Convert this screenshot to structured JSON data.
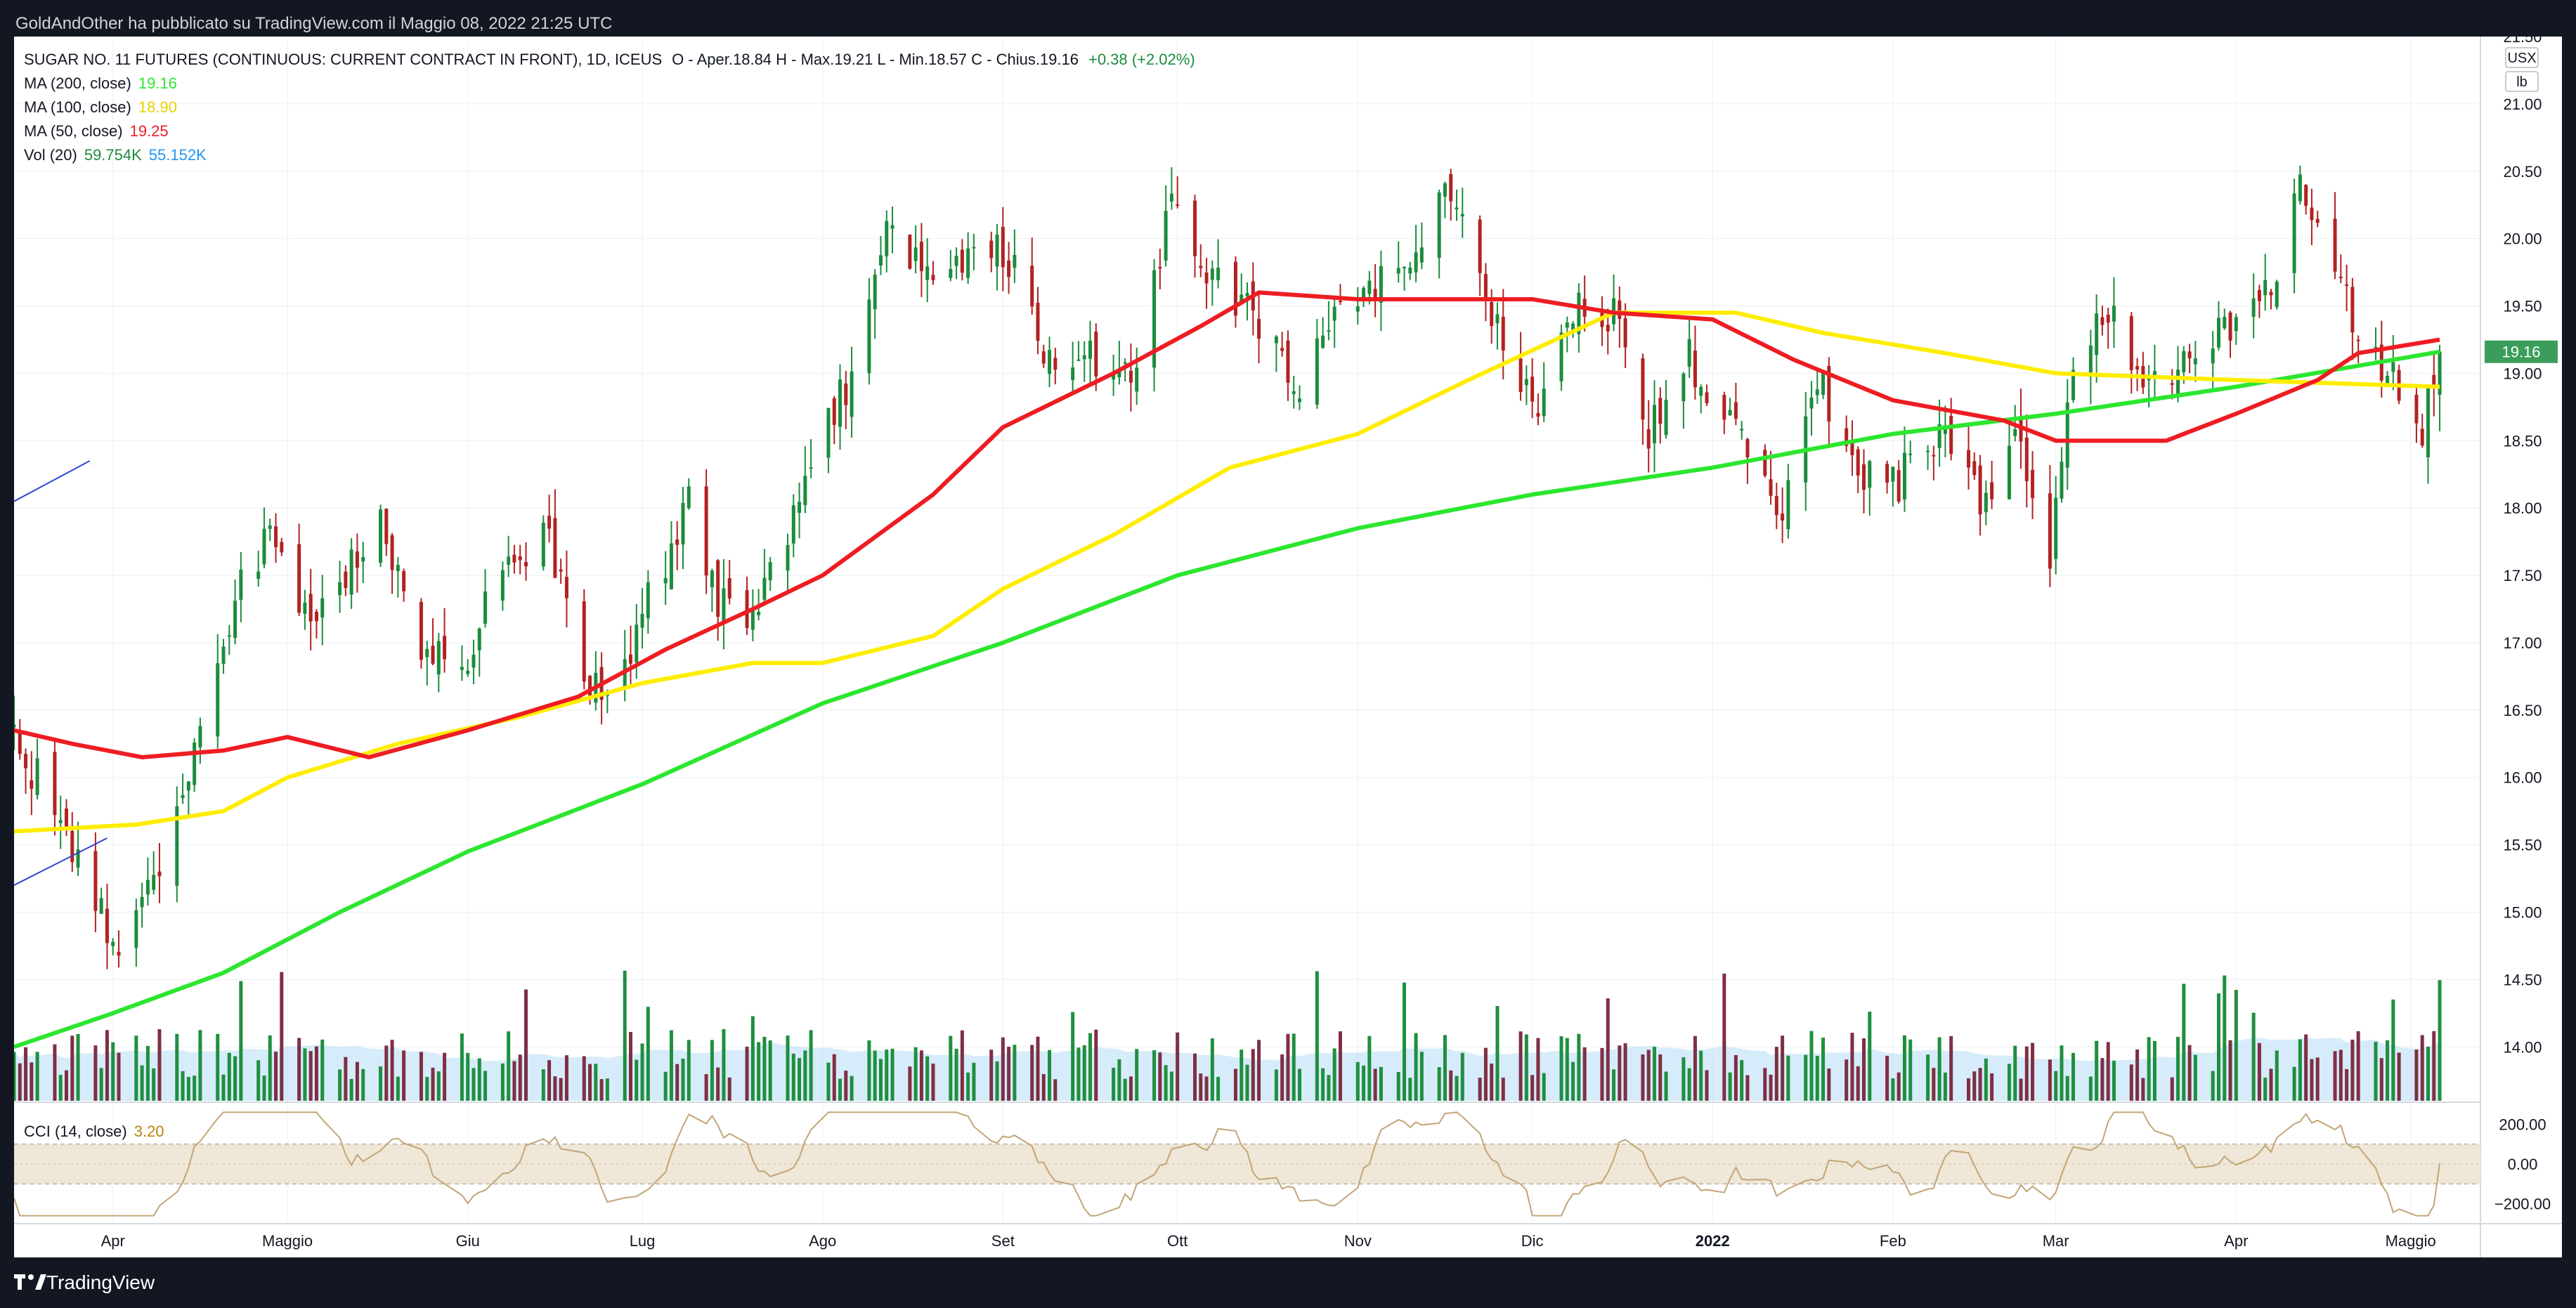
{
  "header": {
    "publisher_line": "GoldAndOther ha pubblicato su TradingView.com il Maggio 08, 2022 21:25 UTC"
  },
  "legend": {
    "instrument": "SUGAR NO. 11 FUTURES (CONTINUOUS: CURRENT CONTRACT IN FRONT), 1D, ICEUS",
    "ohlc": "O - Aper.18.84  H - Max.19.21  L - Min.18.57  C - Chius.19.16",
    "change": "+0.38 (+2.02%)",
    "ma200_label": "MA (200, close)",
    "ma200_value": "19.16",
    "ma100_label": "MA (100, close)",
    "ma100_value": "18.90",
    "ma50_label": "MA (50, close)",
    "ma50_value": "19.25",
    "vol_label": "Vol (20)",
    "vol_value": "59.754K",
    "vol_ma_value": "55.152K",
    "cci_label": "CCI (14, close)",
    "cci_value": "3.20"
  },
  "footer": {
    "brand": "TradingView"
  },
  "colors": {
    "up": "#1c8c3c",
    "down": "#b22222",
    "vol_up": "#1f8f3f",
    "vol_down": "#7f2f45",
    "vol_ma": "#b7dcf5",
    "ma50": "#ee1d23",
    "ma100": "#ffed00",
    "ma200": "#2ce62f",
    "cci": "#c3a576",
    "cci_band": "#efe7d7",
    "grid": "#eceff3",
    "price_tag": "#3a9e5a"
  },
  "chart_data": {
    "type": "candlestick",
    "title": "SUGAR NO. 11 FUTURES (CONTINUOUS: CURRENT CONTRACT IN FRONT), 1D, ICEUS",
    "price_unit": "USX / lb",
    "price_axis": {
      "range": [
        13.6,
        21.5
      ],
      "ticks": [
        "21.50",
        "21.00",
        "20.50",
        "20.00",
        "19.50",
        "19.00",
        "18.50",
        "18.00",
        "17.50",
        "17.00",
        "16.50",
        "16.00",
        "15.50",
        "15.00",
        "14.50",
        "14.00"
      ],
      "unit_labels": [
        "USX",
        "lb"
      ],
      "last_price_tag": "19.16"
    },
    "cci_axis": {
      "range": [
        -300,
        300
      ],
      "ticks": [
        "200.00",
        "0.00",
        "−200.00"
      ],
      "band": [
        -100,
        100
      ]
    },
    "time_axis": {
      "range": [
        "2021-03-15",
        "2022-05-13"
      ],
      "labels": [
        {
          "date": "2021-04-01",
          "text": "Apr"
        },
        {
          "date": "2021-05-01",
          "text": "Maggio"
        },
        {
          "date": "2021-06-01",
          "text": "Giu"
        },
        {
          "date": "2021-07-01",
          "text": "Lug"
        },
        {
          "date": "2021-08-01",
          "text": "Ago"
        },
        {
          "date": "2021-09-01",
          "text": "Set"
        },
        {
          "date": "2021-10-01",
          "text": "Ott"
        },
        {
          "date": "2021-11-01",
          "text": "Nov"
        },
        {
          "date": "2021-12-01",
          "text": "Dic"
        },
        {
          "date": "2022-01-01",
          "text": "2022"
        },
        {
          "date": "2022-02-01",
          "text": "Feb"
        },
        {
          "date": "2022-03-01",
          "text": "Mar"
        },
        {
          "date": "2022-04-01",
          "text": "Apr"
        },
        {
          "date": "2022-05-01",
          "text": "Maggio"
        }
      ]
    },
    "close_anchors": [
      [
        "2021-03-15",
        16.3
      ],
      [
        "2021-03-24",
        15.6
      ],
      [
        "2021-04-01",
        14.75
      ],
      [
        "2021-04-09",
        15.3
      ],
      [
        "2021-04-19",
        16.8
      ],
      [
        "2021-04-23",
        17.4
      ],
      [
        "2021-04-28",
        17.8
      ],
      [
        "2021-05-04",
        17.2
      ],
      [
        "2021-05-12",
        17.6
      ],
      [
        "2021-05-17",
        18.0
      ],
      [
        "2021-05-24",
        16.9
      ],
      [
        "2021-06-01",
        16.85
      ],
      [
        "2021-06-07",
        17.6
      ],
      [
        "2021-06-15",
        17.75
      ],
      [
        "2021-06-21",
        16.8
      ],
      [
        "2021-06-25",
        16.5
      ],
      [
        "2021-06-30",
        17.1
      ],
      [
        "2021-07-06",
        17.7
      ],
      [
        "2021-07-09",
        18.1
      ],
      [
        "2021-07-14",
        17.3
      ],
      [
        "2021-07-20",
        17.1
      ],
      [
        "2021-07-26",
        17.8
      ],
      [
        "2021-07-30",
        18.3
      ],
      [
        "2021-08-06",
        19.0
      ],
      [
        "2021-08-12",
        20.1
      ],
      [
        "2021-08-20",
        19.6
      ],
      [
        "2021-08-27",
        20.0
      ],
      [
        "2021-09-03",
        19.8
      ],
      [
        "2021-09-10",
        19.0
      ],
      [
        "2021-09-17",
        19.1
      ],
      [
        "2021-09-24",
        19.0
      ],
      [
        "2021-09-30",
        20.3
      ],
      [
        "2021-10-06",
        19.7
      ],
      [
        "2021-10-14",
        19.5
      ],
      [
        "2021-10-21",
        18.9
      ],
      [
        "2021-10-29",
        19.4
      ],
      [
        "2021-11-05",
        19.7
      ],
      [
        "2021-11-12",
        19.9
      ],
      [
        "2021-11-17",
        20.4
      ],
      [
        "2021-11-24",
        19.4
      ],
      [
        "2021-12-02",
        18.6
      ],
      [
        "2021-12-09",
        19.6
      ],
      [
        "2021-12-15",
        19.4
      ],
      [
        "2021-12-21",
        18.6
      ],
      [
        "2021-12-28",
        19.1
      ],
      [
        "2022-01-05",
        18.6
      ],
      [
        "2022-01-12",
        17.9
      ],
      [
        "2022-01-19",
        19.0
      ],
      [
        "2022-01-26",
        18.3
      ],
      [
        "2022-02-02",
        18.2
      ],
      [
        "2022-02-09",
        18.6
      ],
      [
        "2022-02-16",
        18.0
      ],
      [
        "2022-02-23",
        18.5
      ],
      [
        "2022-02-28",
        17.6
      ],
      [
        "2022-03-04",
        19.0
      ],
      [
        "2022-03-10",
        19.5
      ],
      [
        "2022-03-17",
        18.9
      ],
      [
        "2022-03-24",
        19.2
      ],
      [
        "2022-03-31",
        19.3
      ],
      [
        "2022-04-07",
        19.7
      ],
      [
        "2022-04-12",
        20.4
      ],
      [
        "2022-04-18",
        19.9
      ],
      [
        "2022-04-22",
        19.3
      ],
      [
        "2022-04-28",
        19.0
      ],
      [
        "2022-05-03",
        18.6
      ],
      [
        "2022-05-06",
        19.16
      ]
    ],
    "ma50": [
      [
        "2021-03-15",
        16.35
      ],
      [
        "2021-03-25",
        16.25
      ],
      [
        "2021-04-06",
        16.15
      ],
      [
        "2021-04-20",
        16.2
      ],
      [
        "2021-05-01",
        16.3
      ],
      [
        "2021-05-15",
        16.15
      ],
      [
        "2021-06-01",
        16.35
      ],
      [
        "2021-06-20",
        16.6
      ],
      [
        "2021-07-05",
        16.95
      ],
      [
        "2021-07-20",
        17.25
      ],
      [
        "2021-08-01",
        17.5
      ],
      [
        "2021-08-20",
        18.1
      ],
      [
        "2021-09-01",
        18.6
      ],
      [
        "2021-09-20",
        19.0
      ],
      [
        "2021-10-05",
        19.35
      ],
      [
        "2021-10-15",
        19.6
      ],
      [
        "2021-11-01",
        19.55
      ],
      [
        "2021-11-20",
        19.55
      ],
      [
        "2021-12-01",
        19.55
      ],
      [
        "2021-12-15",
        19.45
      ],
      [
        "2022-01-01",
        19.4
      ],
      [
        "2022-01-15",
        19.1
      ],
      [
        "2022-02-01",
        18.8
      ],
      [
        "2022-02-20",
        18.65
      ],
      [
        "2022-03-01",
        18.5
      ],
      [
        "2022-03-20",
        18.5
      ],
      [
        "2022-04-01",
        18.7
      ],
      [
        "2022-04-15",
        18.95
      ],
      [
        "2022-04-22",
        19.15
      ],
      [
        "2022-05-06",
        19.25
      ]
    ],
    "ma100": [
      [
        "2021-03-15",
        15.6
      ],
      [
        "2021-04-05",
        15.65
      ],
      [
        "2021-04-20",
        15.75
      ],
      [
        "2021-05-01",
        16.0
      ],
      [
        "2021-05-20",
        16.25
      ],
      [
        "2021-06-10",
        16.45
      ],
      [
        "2021-07-01",
        16.7
      ],
      [
        "2021-07-20",
        16.85
      ],
      [
        "2021-08-01",
        16.85
      ],
      [
        "2021-08-20",
        17.05
      ],
      [
        "2021-09-01",
        17.4
      ],
      [
        "2021-09-20",
        17.8
      ],
      [
        "2021-10-10",
        18.3
      ],
      [
        "2021-11-01",
        18.55
      ],
      [
        "2021-11-20",
        18.95
      ],
      [
        "2021-12-15",
        19.45
      ],
      [
        "2022-01-05",
        19.45
      ],
      [
        "2022-01-20",
        19.3
      ],
      [
        "2022-02-10",
        19.15
      ],
      [
        "2022-03-01",
        19.0
      ],
      [
        "2022-04-01",
        18.95
      ],
      [
        "2022-05-06",
        18.9
      ]
    ],
    "ma200": [
      [
        "2021-03-15",
        14.0
      ],
      [
        "2021-04-01",
        14.25
      ],
      [
        "2021-04-20",
        14.55
      ],
      [
        "2021-05-10",
        15.0
      ],
      [
        "2021-06-01",
        15.45
      ],
      [
        "2021-07-01",
        15.95
      ],
      [
        "2021-08-01",
        16.55
      ],
      [
        "2021-09-01",
        17.0
      ],
      [
        "2021-10-01",
        17.5
      ],
      [
        "2021-11-01",
        17.85
      ],
      [
        "2021-12-01",
        18.1
      ],
      [
        "2022-01-01",
        18.3
      ],
      [
        "2022-02-01",
        18.55
      ],
      [
        "2022-03-01",
        18.7
      ],
      [
        "2022-04-01",
        18.9
      ],
      [
        "2022-05-06",
        19.16
      ]
    ],
    "volume": {
      "last": "59.754K",
      "ma20_last": "55.152K"
    },
    "cci": {
      "last": 3.2
    },
    "drawings": [
      {
        "type": "trend_line",
        "from": [
          "2021-03-15",
          18.05
        ],
        "to": [
          "2021-03-28",
          18.35
        ]
      },
      {
        "type": "trend_line",
        "from": [
          "2021-03-15",
          15.2
        ],
        "to": [
          "2021-03-31",
          15.55
        ]
      }
    ]
  }
}
